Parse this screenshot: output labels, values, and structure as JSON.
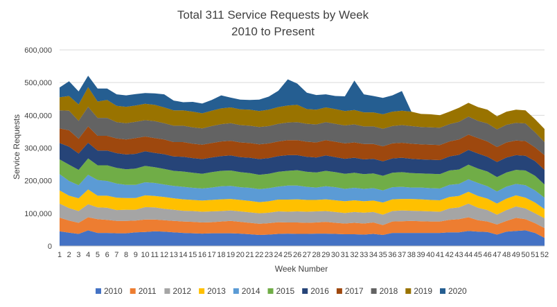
{
  "chart_data": {
    "type": "area",
    "stacked": true,
    "title": "Total 311 Service Requests by Week",
    "subtitle": "2010 to Present",
    "xlabel": "Week Number",
    "ylabel": "Service Requests",
    "ylim": [
      0,
      600000
    ],
    "yticks": [
      0,
      100000,
      200000,
      300000,
      400000,
      500000,
      600000
    ],
    "ytick_labels": [
      "0",
      "100,000",
      "200,000",
      "300,000",
      "400,000",
      "500,000",
      "600,000"
    ],
    "grid": true,
    "legend_position": "bottom",
    "x": [
      1,
      2,
      3,
      4,
      5,
      6,
      7,
      8,
      9,
      10,
      11,
      12,
      13,
      14,
      15,
      16,
      17,
      18,
      19,
      20,
      21,
      22,
      23,
      24,
      25,
      26,
      27,
      28,
      29,
      30,
      31,
      32,
      33,
      34,
      35,
      36,
      37,
      38,
      39,
      40,
      41,
      42,
      43,
      44,
      45,
      46,
      47,
      48,
      49,
      50,
      51,
      52
    ],
    "series": [
      {
        "name": "2010",
        "color": "#4472c4",
        "values": [
          45000,
          41000,
          37000,
          48000,
          40000,
          40000,
          39000,
          39000,
          42000,
          43000,
          45000,
          44000,
          42000,
          40000,
          39000,
          38000,
          39000,
          39000,
          39000,
          38000,
          36000,
          34000,
          35000,
          37000,
          38000,
          37000,
          37000,
          38000,
          38000,
          37000,
          36000,
          36000,
          35000,
          37000,
          34000,
          40000,
          40000,
          40000,
          40000,
          40000,
          40000,
          42000,
          42000,
          46000,
          44000,
          43000,
          35000,
          44000,
          46000,
          48000,
          40000,
          25000
        ]
      },
      {
        "name": "2011",
        "color": "#ed7d31",
        "values": [
          42000,
          37000,
          34000,
          40000,
          42000,
          40000,
          38000,
          38000,
          36000,
          38000,
          36000,
          35000,
          35000,
          35000,
          35000,
          34000,
          34000,
          36000,
          38000,
          36000,
          35000,
          34000,
          35000,
          36000,
          34000,
          35000,
          34000,
          34000,
          36000,
          34000,
          33000,
          35000,
          34000,
          35000,
          30000,
          35000,
          36000,
          37000,
          36000,
          35000,
          35000,
          38000,
          40000,
          42000,
          35000,
          32000,
          31000,
          33000,
          40000,
          34000,
          30000,
          30000
        ]
      },
      {
        "name": "2012",
        "color": "#a5a5a5",
        "values": [
          43000,
          38000,
          36000,
          40000,
          36000,
          37000,
          33000,
          34000,
          33000,
          38000,
          37000,
          35000,
          34000,
          33000,
          33000,
          33000,
          33000,
          32000,
          32000,
          32000,
          32000,
          32000,
          32000,
          33000,
          33000,
          34000,
          34000,
          34000,
          33000,
          33000,
          32000,
          33000,
          33000,
          32000,
          32000,
          32000,
          33000,
          31000,
          31000,
          31000,
          30000,
          35000,
          36000,
          42000,
          38000,
          35000,
          30000,
          33000,
          35000,
          33000,
          30000,
          30000
        ]
      },
      {
        "name": "2013",
        "color": "#ffc000",
        "values": [
          40000,
          38000,
          39000,
          45000,
          36000,
          37000,
          38000,
          36000,
          36000,
          36000,
          35000,
          36000,
          35000,
          35000,
          34000,
          34000,
          35000,
          36000,
          35000,
          35000,
          35000,
          34000,
          35000,
          36000,
          37000,
          37000,
          36000,
          35000,
          36000,
          36000,
          36000,
          36000,
          35000,
          35000,
          37000,
          36000,
          35000,
          36000,
          36000,
          35000,
          35000,
          35000,
          35000,
          36000,
          36000,
          35000,
          34000,
          35000,
          34000,
          33000,
          33000,
          28000
        ]
      },
      {
        "name": "2014",
        "color": "#5b9bd5",
        "values": [
          50000,
          45000,
          40000,
          45000,
          48000,
          45000,
          43000,
          40000,
          40000,
          40000,
          40000,
          38000,
          38000,
          38000,
          37000,
          37000,
          38000,
          40000,
          40000,
          39000,
          40000,
          40000,
          40000,
          40000,
          43000,
          42000,
          40000,
          38000,
          40000,
          40000,
          38000,
          38000,
          38000,
          38000,
          37000,
          37000,
          37000,
          35000,
          36000,
          36000,
          36000,
          37000,
          37000,
          38000,
          40000,
          38000,
          37000,
          37000,
          35000,
          38000,
          37000,
          35000
        ]
      },
      {
        "name": "2015",
        "color": "#70ad47",
        "values": [
          45000,
          50000,
          47000,
          50000,
          45000,
          48000,
          48000,
          48000,
          50000,
          50000,
          48000,
          48000,
          46000,
          47000,
          46000,
          45000,
          47000,
          47000,
          47000,
          46000,
          45000,
          44000,
          44000,
          45000,
          45000,
          47000,
          46000,
          46000,
          47000,
          46000,
          46000,
          46000,
          45000,
          45000,
          45000,
          44000,
          45000,
          44000,
          43000,
          44000,
          44000,
          44000,
          44000,
          45000,
          44000,
          45000,
          44000,
          43000,
          43000,
          45000,
          45000,
          40000
        ]
      },
      {
        "name": "2016",
        "color": "#264478",
        "values": [
          50000,
          55000,
          50000,
          48000,
          45000,
          45000,
          45000,
          45000,
          45000,
          45000,
          44000,
          45000,
          44000,
          45000,
          45000,
          45000,
          45000,
          45000,
          46000,
          46000,
          47000,
          48000,
          48000,
          48000,
          48000,
          46000,
          46000,
          46000,
          47000,
          46000,
          46000,
          46000,
          45000,
          45000,
          44000,
          44000,
          44000,
          44000,
          43000,
          43000,
          43000,
          43000,
          45000,
          45000,
          46000,
          45000,
          46000,
          46000,
          45000,
          45000,
          45000,
          45000
        ]
      },
      {
        "name": "2017",
        "color": "#9e480e",
        "values": [
          45000,
          50000,
          45000,
          50000,
          45000,
          45000,
          45000,
          46000,
          48000,
          45000,
          45000,
          45000,
          44000,
          45000,
          44000,
          44000,
          44000,
          45000,
          45000,
          45000,
          45000,
          45000,
          45000,
          45000,
          46000,
          46000,
          46000,
          46000,
          47000,
          47000,
          47000,
          47000,
          47000,
          45000,
          46000,
          46000,
          46000,
          46000,
          46000,
          46000,
          46000,
          46000,
          47000,
          47000,
          47000,
          47000,
          46000,
          46000,
          45000,
          45000,
          42000,
          45000
        ]
      },
      {
        "name": "2018",
        "color": "#636363",
        "values": [
          55000,
          60000,
          55000,
          60000,
          55000,
          55000,
          50000,
          50000,
          50000,
          50000,
          52000,
          50000,
          50000,
          50000,
          50000,
          50000,
          52000,
          53000,
          54000,
          53000,
          53000,
          53000,
          53000,
          54000,
          54000,
          55000,
          55000,
          55000,
          55000,
          55000,
          55000,
          55000,
          54000,
          54000,
          54000,
          53000,
          54000,
          54000,
          53000,
          53000,
          53000,
          53000,
          54000,
          55000,
          53000,
          55000,
          54000,
          54000,
          54000,
          54000,
          46000,
          40000
        ]
      },
      {
        "name": "2019",
        "color": "#997300",
        "values": [
          40000,
          45000,
          50000,
          60000,
          50000,
          55000,
          50000,
          50000,
          50000,
          50000,
          50000,
          48000,
          47000,
          47000,
          48000,
          46000,
          47000,
          48000,
          48000,
          48000,
          49000,
          49000,
          50000,
          51000,
          52000,
          53000,
          45000,
          45000,
          45000,
          45000,
          44000,
          44000,
          43000,
          43000,
          44000,
          44000,
          44000,
          44000,
          40000,
          40000,
          38000,
          38000,
          43000,
          42000,
          42000,
          42000,
          40000,
          40000,
          40000,
          40000,
          40000,
          40000
        ]
      },
      {
        "name": "2020",
        "color": "#255e91",
        "values": [
          30000,
          45000,
          40000,
          35000,
          40000,
          35000,
          35000,
          35000,
          35000,
          33000,
          35000,
          40000,
          30000,
          25000,
          30000,
          30000,
          33000,
          40000,
          30000,
          30000,
          30000,
          35000,
          40000,
          50000,
          80000,
          65000,
          50000,
          45000,
          40000,
          40000,
          45000,
          90000,
          55000,
          50000,
          50000,
          50000,
          60000,
          0,
          0,
          0,
          0,
          0,
          0,
          0,
          0,
          0,
          0,
          0,
          0,
          0,
          0,
          0
        ]
      }
    ]
  }
}
